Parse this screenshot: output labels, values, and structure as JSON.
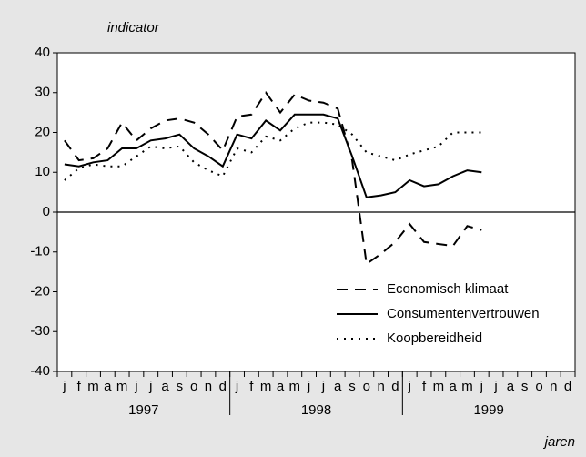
{
  "chart_data": {
    "type": "line",
    "y_label": "indicator",
    "x_label": "jaren",
    "categories": [
      "j",
      "f",
      "m",
      "a",
      "m",
      "j",
      "j",
      "a",
      "s",
      "o",
      "n",
      "d",
      "j",
      "f",
      "m",
      "a",
      "m",
      "j",
      "j",
      "a",
      "s",
      "o",
      "n",
      "d",
      "j",
      "f",
      "m",
      "a",
      "m",
      "j",
      "j",
      "a",
      "s",
      "o",
      "n",
      "d"
    ],
    "years": [
      "1997",
      "1998",
      "1999"
    ],
    "series": [
      {
        "name": "Economisch klimaat",
        "color": "#000000",
        "dash": "dashed",
        "values": [
          18,
          13,
          13.5,
          16,
          22.5,
          18,
          21,
          23,
          23.5,
          22.5,
          19.5,
          15.5,
          24,
          24.5,
          30,
          25,
          29.5,
          28,
          27.5,
          26,
          13,
          -13,
          -10.5,
          -7.5,
          -3,
          -7.5,
          -8,
          -8.5,
          -3.5,
          -4.5,
          null,
          null,
          null,
          null,
          null,
          null
        ]
      },
      {
        "name": "Consumentenvertrouwen",
        "color": "#000000",
        "dash": "solid",
        "values": [
          12,
          11.5,
          12.5,
          13,
          16,
          16,
          18,
          18.5,
          19.5,
          16,
          14,
          11.5,
          19.5,
          18.5,
          23,
          20.5,
          24.5,
          24.5,
          24.5,
          23.5,
          14,
          3.7,
          4.2,
          5,
          8,
          6.5,
          7,
          9,
          10.5,
          10,
          null,
          null,
          null,
          null,
          null,
          null
        ]
      },
      {
        "name": "Koopbereidheid",
        "color": "#000000",
        "dash": "dotted",
        "values": [
          8,
          11,
          12,
          11.5,
          11.5,
          14,
          16.5,
          16,
          16.5,
          12.5,
          10.5,
          9,
          16,
          15,
          19,
          18,
          21,
          22.5,
          22.5,
          22,
          19.5,
          15,
          14,
          13,
          14.5,
          15.5,
          16.5,
          20,
          20,
          20,
          null,
          null,
          null,
          null,
          null,
          null
        ]
      }
    ],
    "ylim": [
      -40,
      40
    ],
    "yticks": [
      -40,
      -30,
      -20,
      -10,
      0,
      10,
      20,
      30,
      40
    ],
    "zero_line": true
  }
}
